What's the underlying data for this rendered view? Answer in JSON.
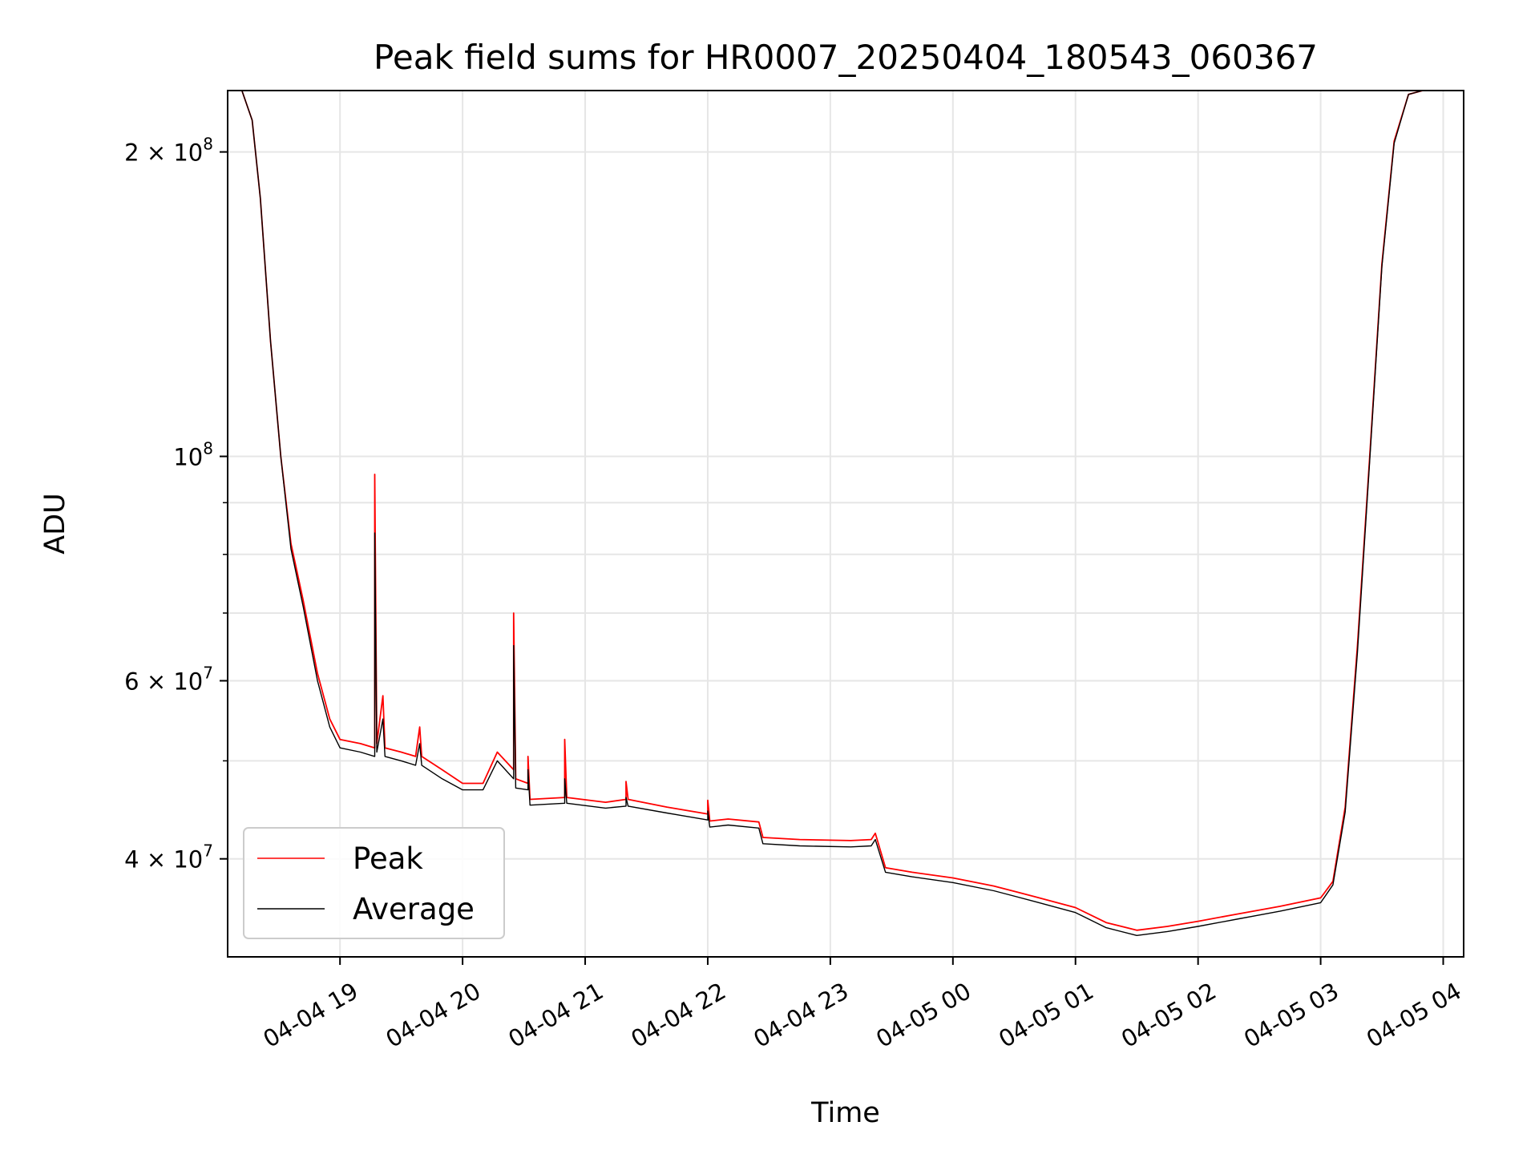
{
  "chart_data": {
    "type": "line",
    "title": "Peak field sums for HR0007_20250404_180543_060367",
    "xlabel": "Time",
    "ylabel": "ADU",
    "y_scale": "log",
    "xlim": [
      "2025-04-04 18:05",
      "2025-04-05 04:10"
    ],
    "ylim": [
      32000000,
      230000000
    ],
    "grid": true,
    "legend_position": "lower-left",
    "x_ticks": [
      {
        "t": "2025-04-04 19:00",
        "label": "04-04 19"
      },
      {
        "t": "2025-04-04 20:00",
        "label": "04-04 20"
      },
      {
        "t": "2025-04-04 21:00",
        "label": "04-04 21"
      },
      {
        "t": "2025-04-04 22:00",
        "label": "04-04 22"
      },
      {
        "t": "2025-04-04 23:00",
        "label": "04-04 23"
      },
      {
        "t": "2025-04-05 00:00",
        "label": "04-05 00"
      },
      {
        "t": "2025-04-05 01:00",
        "label": "04-05 01"
      },
      {
        "t": "2025-04-05 02:00",
        "label": "04-05 02"
      },
      {
        "t": "2025-04-05 03:00",
        "label": "04-05 03"
      },
      {
        "t": "2025-04-05 04:00",
        "label": "04-05 04"
      }
    ],
    "y_ticks": [
      {
        "value": 40000000,
        "base": "4 × 10",
        "exp": "7"
      },
      {
        "value": 60000000,
        "base": "6 × 10",
        "exp": "7"
      },
      {
        "value": 100000000,
        "base": "10",
        "exp": "8"
      },
      {
        "value": 200000000,
        "base": "2 × 10",
        "exp": "8"
      }
    ],
    "series": [
      {
        "name": "Peak",
        "color": "#ff0000",
        "points": [
          [
            "2025-04-04 18:05",
            230000000
          ],
          [
            "2025-04-04 18:12",
            230000000
          ],
          [
            "2025-04-04 18:17",
            215000000
          ],
          [
            "2025-04-04 18:21",
            180000000
          ],
          [
            "2025-04-04 18:26",
            130000000
          ],
          [
            "2025-04-04 18:31",
            100000000
          ],
          [
            "2025-04-04 18:36",
            82000000
          ],
          [
            "2025-04-04 18:42",
            72000000
          ],
          [
            "2025-04-04 18:49",
            61000000
          ],
          [
            "2025-04-04 18:55",
            55000000
          ],
          [
            "2025-04-04 19:00",
            52500000
          ],
          [
            "2025-04-04 19:10",
            52000000
          ],
          [
            "2025-04-04 19:17",
            51500000
          ],
          [
            "2025-04-04 19:17",
            96000000
          ],
          [
            "2025-04-04 19:18",
            52000000
          ],
          [
            "2025-04-04 19:21",
            58000000
          ],
          [
            "2025-04-04 19:22",
            51500000
          ],
          [
            "2025-04-04 19:30",
            51000000
          ],
          [
            "2025-04-04 19:37",
            50500000
          ],
          [
            "2025-04-04 19:39",
            54000000
          ],
          [
            "2025-04-04 19:40",
            50500000
          ],
          [
            "2025-04-04 19:50",
            49000000
          ],
          [
            "2025-04-04 20:00",
            47500000
          ],
          [
            "2025-04-04 20:10",
            47500000
          ],
          [
            "2025-04-04 20:17",
            51000000
          ],
          [
            "2025-04-04 20:25",
            49000000
          ],
          [
            "2025-04-04 20:25",
            70000000
          ],
          [
            "2025-04-04 20:26",
            48000000
          ],
          [
            "2025-04-04 20:32",
            47500000
          ],
          [
            "2025-04-04 20:32",
            50500000
          ],
          [
            "2025-04-04 20:33",
            45800000
          ],
          [
            "2025-04-04 20:50",
            46000000
          ],
          [
            "2025-04-04 20:50",
            52500000
          ],
          [
            "2025-04-04 20:51",
            46000000
          ],
          [
            "2025-04-04 21:10",
            45500000
          ],
          [
            "2025-04-04 21:20",
            45800000
          ],
          [
            "2025-04-04 21:20",
            47700000
          ],
          [
            "2025-04-04 21:21",
            45800000
          ],
          [
            "2025-04-04 21:40",
            45000000
          ],
          [
            "2025-04-04 22:00",
            44300000
          ],
          [
            "2025-04-04 22:00",
            45700000
          ],
          [
            "2025-04-04 22:01",
            43600000
          ],
          [
            "2025-04-04 22:10",
            43800000
          ],
          [
            "2025-04-04 22:25",
            43500000
          ],
          [
            "2025-04-04 22:27",
            42000000
          ],
          [
            "2025-04-04 22:45",
            41800000
          ],
          [
            "2025-04-04 23:10",
            41700000
          ],
          [
            "2025-04-04 23:20",
            41800000
          ],
          [
            "2025-04-04 23:22",
            42400000
          ],
          [
            "2025-04-04 23:27",
            39200000
          ],
          [
            "2025-04-04 23:40",
            38800000
          ],
          [
            "2025-04-05 00:00",
            38300000
          ],
          [
            "2025-04-05 00:20",
            37600000
          ],
          [
            "2025-04-05 00:40",
            36700000
          ],
          [
            "2025-04-05 01:00",
            35800000
          ],
          [
            "2025-04-05 01:15",
            34600000
          ],
          [
            "2025-04-05 01:30",
            34000000
          ],
          [
            "2025-04-05 01:45",
            34300000
          ],
          [
            "2025-04-05 02:00",
            34700000
          ],
          [
            "2025-04-05 02:20",
            35300000
          ],
          [
            "2025-04-05 02:40",
            35900000
          ],
          [
            "2025-04-05 03:00",
            36600000
          ],
          [
            "2025-04-05 03:06",
            38000000
          ],
          [
            "2025-04-05 03:12",
            45000000
          ],
          [
            "2025-04-05 03:18",
            65000000
          ],
          [
            "2025-04-05 03:24",
            100000000
          ],
          [
            "2025-04-05 03:30",
            155000000
          ],
          [
            "2025-04-05 03:36",
            205000000
          ],
          [
            "2025-04-05 03:43",
            228000000
          ],
          [
            "2025-04-05 03:50",
            230000000
          ],
          [
            "2025-04-05 04:00",
            230000000
          ]
        ]
      },
      {
        "name": "Average",
        "color": "#000000",
        "points": [
          [
            "2025-04-04 18:05",
            230000000
          ],
          [
            "2025-04-04 18:12",
            230000000
          ],
          [
            "2025-04-04 18:17",
            215000000
          ],
          [
            "2025-04-04 18:21",
            180000000
          ],
          [
            "2025-04-04 18:26",
            130000000
          ],
          [
            "2025-04-04 18:31",
            100000000
          ],
          [
            "2025-04-04 18:36",
            81000000
          ],
          [
            "2025-04-04 18:42",
            71000000
          ],
          [
            "2025-04-04 18:49",
            60000000
          ],
          [
            "2025-04-04 18:55",
            54000000
          ],
          [
            "2025-04-04 19:00",
            51500000
          ],
          [
            "2025-04-04 19:10",
            51000000
          ],
          [
            "2025-04-04 19:17",
            50500000
          ],
          [
            "2025-04-04 19:17",
            84000000
          ],
          [
            "2025-04-04 19:18",
            51000000
          ],
          [
            "2025-04-04 19:21",
            55000000
          ],
          [
            "2025-04-04 19:22",
            50500000
          ],
          [
            "2025-04-04 19:30",
            50000000
          ],
          [
            "2025-04-04 19:37",
            49500000
          ],
          [
            "2025-04-04 19:39",
            52000000
          ],
          [
            "2025-04-04 19:40",
            49500000
          ],
          [
            "2025-04-04 19:50",
            48000000
          ],
          [
            "2025-04-04 20:00",
            46800000
          ],
          [
            "2025-04-04 20:10",
            46800000
          ],
          [
            "2025-04-04 20:17",
            50000000
          ],
          [
            "2025-04-04 20:25",
            48000000
          ],
          [
            "2025-04-04 20:25",
            65000000
          ],
          [
            "2025-04-04 20:26",
            47000000
          ],
          [
            "2025-04-04 20:32",
            46800000
          ],
          [
            "2025-04-04 20:32",
            49000000
          ],
          [
            "2025-04-04 20:33",
            45200000
          ],
          [
            "2025-04-04 20:50",
            45400000
          ],
          [
            "2025-04-04 20:50",
            48000000
          ],
          [
            "2025-04-04 20:51",
            45400000
          ],
          [
            "2025-04-04 21:10",
            44900000
          ],
          [
            "2025-04-04 21:20",
            45100000
          ],
          [
            "2025-04-04 21:20",
            46000000
          ],
          [
            "2025-04-04 21:21",
            45100000
          ],
          [
            "2025-04-04 21:40",
            44400000
          ],
          [
            "2025-04-04 22:00",
            43700000
          ],
          [
            "2025-04-04 22:00",
            44600000
          ],
          [
            "2025-04-04 22:01",
            43000000
          ],
          [
            "2025-04-04 22:10",
            43200000
          ],
          [
            "2025-04-04 22:25",
            42900000
          ],
          [
            "2025-04-04 22:27",
            41400000
          ],
          [
            "2025-04-04 22:45",
            41200000
          ],
          [
            "2025-04-04 23:10",
            41100000
          ],
          [
            "2025-04-04 23:20",
            41200000
          ],
          [
            "2025-04-04 23:22",
            41800000
          ],
          [
            "2025-04-04 23:27",
            38800000
          ],
          [
            "2025-04-04 23:40",
            38400000
          ],
          [
            "2025-04-05 00:00",
            37900000
          ],
          [
            "2025-04-05 00:20",
            37200000
          ],
          [
            "2025-04-05 00:40",
            36300000
          ],
          [
            "2025-04-05 01:00",
            35400000
          ],
          [
            "2025-04-05 01:15",
            34200000
          ],
          [
            "2025-04-05 01:30",
            33600000
          ],
          [
            "2025-04-05 01:45",
            33900000
          ],
          [
            "2025-04-05 02:00",
            34300000
          ],
          [
            "2025-04-05 02:20",
            34900000
          ],
          [
            "2025-04-05 02:40",
            35500000
          ],
          [
            "2025-04-05 03:00",
            36200000
          ],
          [
            "2025-04-05 03:06",
            37700000
          ],
          [
            "2025-04-05 03:12",
            44500000
          ],
          [
            "2025-04-05 03:18",
            64000000
          ],
          [
            "2025-04-05 03:24",
            99000000
          ],
          [
            "2025-04-05 03:30",
            154000000
          ],
          [
            "2025-04-05 03:36",
            204000000
          ],
          [
            "2025-04-05 03:43",
            228000000
          ],
          [
            "2025-04-05 03:50",
            230000000
          ],
          [
            "2025-04-05 04:00",
            230000000
          ]
        ]
      }
    ]
  }
}
